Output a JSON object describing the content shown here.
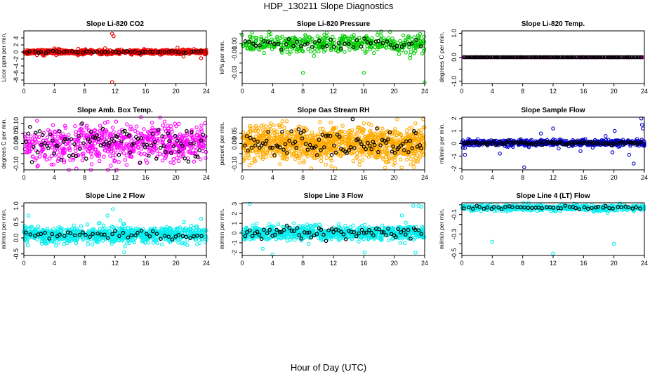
{
  "figure": {
    "title": "HDP_130211  Slope Diagnostics",
    "xlabel": "Hour of Day (UTC)"
  },
  "chart_data": [
    {
      "type": "scatter",
      "title": "Slope Li-820 CO2",
      "ylabel": "Licor ppm per min.",
      "xlim": [
        0,
        24
      ],
      "ylim": [
        -9,
        6
      ],
      "x_ticks": [
        0,
        4,
        8,
        12,
        16,
        20,
        24
      ],
      "y_ticks": [
        -8,
        -6,
        -4,
        -2,
        0,
        2,
        4
      ],
      "color": "#ee0000",
      "hours": 24,
      "n_color": 700,
      "n_black": 48,
      "center": 0.0,
      "spread": 0.35,
      "black_spread": 0.15,
      "outliers": [
        [
          11.6,
          5.2
        ],
        [
          11.8,
          4.5
        ],
        [
          11.6,
          -8.6
        ],
        [
          4.0,
          1.0
        ],
        [
          20.2,
          1.2
        ],
        [
          23.3,
          -1.8
        ],
        [
          21.0,
          -1.3
        ]
      ]
    },
    {
      "type": "scatter",
      "title": "Slope Li-820 Pressure",
      "ylabel": "kPa per min.",
      "xlim": [
        0,
        24
      ],
      "ylim": [
        -0.041,
        0.013
      ],
      "x_ticks": [
        0,
        4,
        8,
        12,
        16,
        20,
        24
      ],
      "y_ticks": [
        -0.03,
        -0.02,
        -0.01,
        0.0,
        0.01
      ],
      "y_tick_labels": [
        "-0.03",
        "",
        "-0.01",
        "0.00",
        ""
      ],
      "color": "#00cc00",
      "hours": 24,
      "n_color": 450,
      "n_black": 48,
      "center": 0.0,
      "spread": 0.0045,
      "black_spread": 0.003,
      "outliers": [
        [
          8.0,
          -0.03
        ],
        [
          16.0,
          -0.03
        ],
        [
          24.0,
          -0.04
        ],
        [
          1.0,
          -0.005
        ],
        [
          9.0,
          -0.008
        ],
        [
          21.0,
          -0.007
        ]
      ]
    },
    {
      "type": "scatter",
      "title": "Slope Li-820 Temp.",
      "ylabel": "degrees C per min.",
      "xlim": [
        0,
        24
      ],
      "ylim": [
        -1.1,
        1.1
      ],
      "x_ticks": [
        0,
        4,
        8,
        12,
        16,
        20,
        24
      ],
      "y_ticks": [
        -1.0,
        -0.5,
        0.0,
        0.5,
        1.0
      ],
      "y_tick_labels": [
        "-1.0",
        "",
        "0.0",
        "",
        "1.0"
      ],
      "color": "#cc00cc",
      "hours": 24,
      "n_color": 140,
      "n_black": 140,
      "center": 0.0,
      "spread": 0.0,
      "black_spread": 0.0,
      "outliers": []
    },
    {
      "type": "scatter",
      "title": "Slope Amb. Box Temp.",
      "ylabel": "degrees C per min.",
      "xlim": [
        0,
        24
      ],
      "ylim": [
        -0.13,
        0.13
      ],
      "x_ticks": [
        0,
        4,
        8,
        12,
        16,
        20,
        24
      ],
      "y_ticks": [
        -0.1,
        -0.05,
        0.0,
        0.05,
        0.1
      ],
      "y_tick_labels": [
        "-0.10",
        "",
        "0.00",
        "0.05",
        "0.10"
      ],
      "color": "#ff00ff",
      "hours": 24,
      "n_color": 650,
      "n_black": 96,
      "center": 0.0,
      "spread": 0.045,
      "black_spread": 0.04,
      "outliers": []
    },
    {
      "type": "scatter",
      "title": "Slope Gas Stream RH",
      "ylabel": "percent per min.",
      "xlim": [
        0,
        24
      ],
      "ylim": [
        -0.13,
        0.13
      ],
      "x_ticks": [
        0,
        4,
        8,
        12,
        16,
        20,
        24
      ],
      "y_ticks": [
        -0.1,
        -0.05,
        0.0,
        0.05
      ],
      "y_tick_labels": [
        "-0.10",
        "",
        "0.00",
        "0.05"
      ],
      "color": "#ffaa00",
      "hours": 24,
      "n_color": 1200,
      "n_black": 96,
      "center": 0.0,
      "spread": 0.04,
      "black_spread": 0.035,
      "outliers": [
        [
          23.8,
          0.12
        ],
        [
          18.8,
          -0.12
        ],
        [
          16.0,
          0.1
        ],
        [
          5.3,
          0.11
        ]
      ]
    },
    {
      "type": "scatter",
      "title": "Slope Sample Flow",
      "ylabel": "ml/min per min.",
      "xlim": [
        0,
        24
      ],
      "ylim": [
        -2.1,
        2.1
      ],
      "x_ticks": [
        0,
        4,
        8,
        12,
        16,
        20,
        24
      ],
      "y_ticks": [
        -2,
        -1,
        0,
        1,
        2
      ],
      "color": "#0000cc",
      "hours": 24,
      "n_color": 650,
      "n_black": 96,
      "center": 0.05,
      "spread": 0.12,
      "black_spread": 0.08,
      "outliers": [
        [
          23.6,
          2.0
        ],
        [
          23.7,
          1.5
        ],
        [
          23.8,
          1.2
        ],
        [
          12.0,
          1.2
        ],
        [
          10.4,
          0.8
        ],
        [
          8.2,
          -1.9
        ],
        [
          22.6,
          -1.6
        ],
        [
          20.1,
          1.0
        ],
        [
          19.8,
          -0.7
        ],
        [
          0.4,
          -0.9
        ],
        [
          5.0,
          -0.8
        ],
        [
          15.6,
          -0.6
        ],
        [
          22.0,
          -0.9
        ],
        [
          18.9,
          0.6
        ]
      ]
    },
    {
      "type": "scatter",
      "title": "Slope Line 2 Flow",
      "ylabel": "ml/min per min.",
      "xlim": [
        0,
        24
      ],
      "ylim": [
        -0.55,
        1.1
      ],
      "x_ticks": [
        0,
        4,
        8,
        12,
        16,
        20,
        24
      ],
      "y_ticks": [
        -0.5,
        0.0,
        0.5,
        1.0
      ],
      "y_tick_labels": [
        "-0.5",
        "0.0",
        "0.5",
        "1.0"
      ],
      "color": "#00eeee",
      "hours": 24,
      "n_color": 800,
      "n_black": 48,
      "center": 0.1,
      "spread": 0.12,
      "black_spread": 0.06,
      "outliers": [
        [
          11.7,
          0.9
        ],
        [
          12.7,
          0.55
        ],
        [
          11.0,
          0.7
        ],
        [
          0.6,
          0.7
        ],
        [
          13.2,
          -0.45
        ],
        [
          23.3,
          0.6
        ]
      ]
    },
    {
      "type": "scatter",
      "title": "Slope Line 3 Flow",
      "ylabel": "ml/min per min.",
      "xlim": [
        0,
        24
      ],
      "ylim": [
        -2.3,
        3.1
      ],
      "x_ticks": [
        0,
        4,
        8,
        12,
        16,
        20,
        24
      ],
      "y_ticks": [
        -2,
        -1,
        0,
        1,
        2,
        3
      ],
      "color": "#00eeee",
      "hours": 24,
      "n_color": 800,
      "n_black": 72,
      "center": 0.0,
      "spread": 0.35,
      "black_spread": 0.35,
      "outliers": [
        [
          1.0,
          3.0
        ],
        [
          23.2,
          2.8
        ],
        [
          23.6,
          2.7
        ],
        [
          22.5,
          2.8
        ],
        [
          4.0,
          -2.2
        ],
        [
          16.1,
          -2.0
        ],
        [
          2.7,
          -1.6
        ],
        [
          22.8,
          -2.0
        ],
        [
          21.0,
          1.8
        ]
      ]
    },
    {
      "type": "scatter",
      "title": "Slope Line 4 (LT) Flow",
      "ylabel": "ml/min per min.",
      "xlim": [
        0,
        24
      ],
      "ylim": [
        -0.52,
        0.02
      ],
      "x_ticks": [
        0,
        4,
        8,
        12,
        16,
        20,
        24
      ],
      "y_ticks": [
        -0.5,
        -0.4,
        -0.3,
        -0.2,
        -0.1,
        0.0
      ],
      "y_tick_labels": [
        "-0.5",
        "",
        "-0.3",
        "",
        "-0.1",
        ""
      ],
      "color": "#00eeee",
      "hours": 24,
      "n_color": 500,
      "n_black": 48,
      "center": -0.03,
      "spread": 0.015,
      "black_spread": 0.008,
      "outliers": [
        [
          4.0,
          -0.38
        ],
        [
          12.0,
          -0.5
        ],
        [
          20.0,
          -0.4
        ]
      ]
    }
  ]
}
